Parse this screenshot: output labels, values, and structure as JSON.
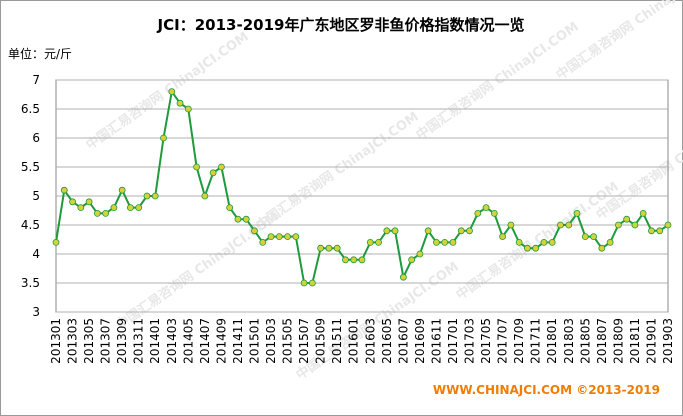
{
  "chart_data": {
    "type": "line",
    "title": "JCI：2013-2019年广东地区罗非鱼价格指数情况一览",
    "unit_label": "单位：元/斤",
    "footer": "WWW.CHINAJCI.COM  ©2013-2019",
    "watermark": "中国汇易咨询网 ChinaJCI.COM",
    "categories": [
      "201301",
      null,
      "201303",
      null,
      "201305",
      null,
      "201307",
      null,
      "201309",
      null,
      "201311",
      null,
      "201401",
      null,
      "201403",
      null,
      "201405",
      null,
      "201407",
      null,
      "201409",
      null,
      "201411",
      null,
      "201501",
      null,
      "201503",
      null,
      "201505",
      null,
      "201507",
      null,
      "201509",
      null,
      "201511",
      null,
      "201601",
      null,
      "201603",
      null,
      "201605",
      null,
      "201607",
      null,
      "201609",
      null,
      "201611",
      null,
      "201701",
      null,
      "201703",
      null,
      "201705",
      null,
      "201707",
      null,
      "201709",
      null,
      "201711",
      null,
      "201801",
      null,
      "201803",
      null,
      "201805",
      null,
      "201807",
      null,
      "201809",
      null,
      "201811",
      null,
      "201901",
      null,
      "201903"
    ],
    "series": [
      {
        "name": "罗非鱼价格指数",
        "color": "#1f9a3c",
        "marker_color": "#d4d23a",
        "values": [
          4.2,
          5.1,
          4.9,
          4.8,
          4.9,
          4.7,
          4.7,
          4.8,
          5.1,
          4.8,
          4.8,
          5.0,
          5.0,
          6.0,
          6.8,
          6.6,
          6.5,
          5.5,
          5.0,
          5.4,
          5.5,
          4.8,
          4.6,
          4.6,
          4.4,
          4.2,
          4.3,
          4.3,
          4.3,
          4.3,
          3.5,
          3.5,
          4.1,
          4.1,
          4.1,
          3.9,
          3.9,
          3.9,
          4.2,
          4.2,
          4.4,
          4.4,
          3.6,
          3.9,
          4.0,
          4.4,
          4.2,
          4.2,
          4.2,
          4.4,
          4.4,
          4.7,
          4.8,
          4.7,
          4.3,
          4.5,
          4.2,
          4.1,
          4.1,
          4.2,
          4.2,
          4.5,
          4.5,
          4.7,
          4.3,
          4.3,
          4.1,
          4.2,
          4.5,
          4.6,
          4.5,
          4.7,
          4.4,
          4.4,
          4.5
        ]
      }
    ],
    "ylim": [
      3,
      7
    ],
    "yticks": [
      3,
      3.5,
      4,
      4.5,
      5,
      5.5,
      6,
      6.5,
      7
    ],
    "grid": true
  }
}
